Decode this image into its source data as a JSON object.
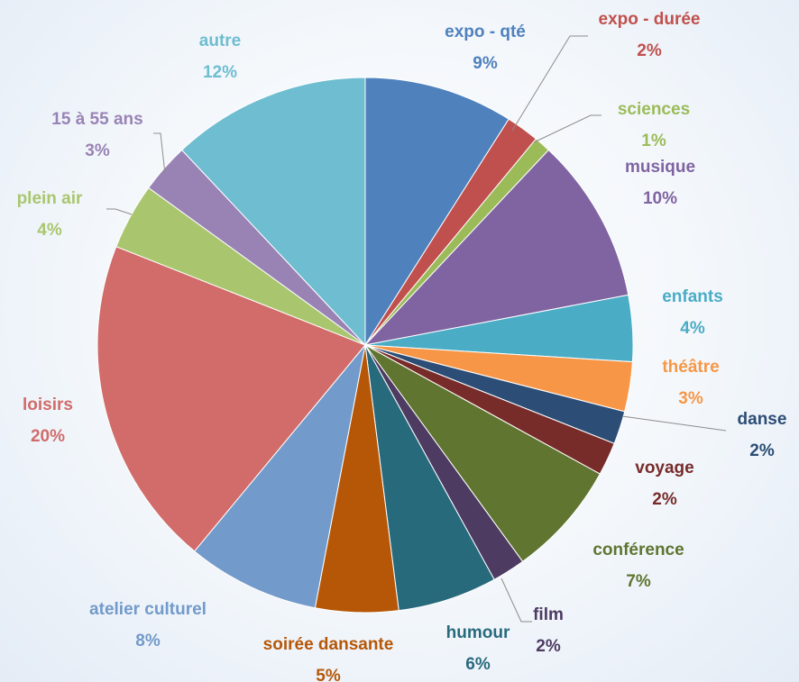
{
  "chart_data": {
    "type": "pie",
    "categories": [
      "expo - qté",
      "expo - durée",
      "sciences",
      "musique",
      "enfants",
      "théâtre",
      "danse",
      "voyage",
      "conférence",
      "film",
      "humour",
      "soirée dansante",
      "atelier culturel",
      "loisirs",
      "plein air",
      "15 à 55 ans",
      "autre"
    ],
    "values": [
      9,
      2,
      1,
      10,
      4,
      3,
      2,
      2,
      7,
      2,
      6,
      5,
      8,
      20,
      4,
      3,
      12
    ],
    "value_labels": [
      "9%",
      "2%",
      "1%",
      "10%",
      "4%",
      "3%",
      "2%",
      "2%",
      "7%",
      "2%",
      "6%",
      "5%",
      "8%",
      "20%",
      "4%",
      "3%",
      "12%"
    ],
    "colors": [
      "#4f81bd",
      "#c0504d",
      "#9bbb59",
      "#8064a2",
      "#4bacc6",
      "#f79646",
      "#2c4d75",
      "#772c2a",
      "#5f7530",
      "#4d3b62",
      "#276a7c",
      "#b65708",
      "#729aca",
      "#d16c6a",
      "#a9c66f",
      "#9983b5",
      "#6fbdd1"
    ]
  }
}
